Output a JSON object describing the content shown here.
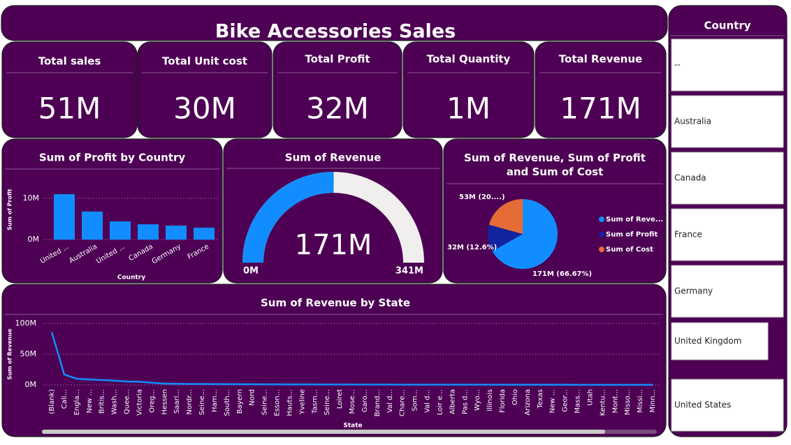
{
  "title": "Bike Accessories Sales",
  "cards": [
    {
      "label": "Total sales",
      "value": "51M"
    },
    {
      "label": "Total Unit cost",
      "value": "30M"
    },
    {
      "label": "Total Profit",
      "value": "32M"
    },
    {
      "label": "Total Quantity",
      "value": "1M"
    },
    {
      "label": "Total Revenue",
      "value": "171M"
    }
  ],
  "slicer": {
    "title": "Country",
    "items": [
      "--",
      "Australia",
      "Canada",
      "France",
      "Germany",
      "United Kingdom",
      "United States"
    ]
  },
  "chart_data": [
    {
      "type": "bar",
      "title": "Sum of Profit by Country",
      "x_label": "Country",
      "y_label": "Sum of Profit",
      "categories": [
        "United ...",
        "Australia",
        "United ...",
        "Canada",
        "Germany",
        "France"
      ],
      "values": [
        11000000,
        6800000,
        4400000,
        3700000,
        3400000,
        2900000
      ],
      "color": "#118dff",
      "ylim": [
        0,
        12000000
      ],
      "yticks": [
        {
          "value": 0,
          "label": "0M"
        },
        {
          "value": 10000000,
          "label": "10M"
        }
      ],
      "grid": true
    },
    {
      "type": "gauge",
      "title": "Sum of Revenue",
      "values": [
        171000000
      ],
      "value_labels": [
        "171M"
      ],
      "min": {
        "value": 0,
        "label": "0M"
      },
      "max": {
        "value": 341000000,
        "label": "341M"
      },
      "color": "#118dff",
      "track_color": "#f1efee"
    },
    {
      "type": "pie",
      "title": "Sum of Revenue, Sum of Profit and Sum of Cost",
      "series": [
        {
          "name": "Sum of Reve...",
          "color": "#118dff",
          "values": [
            171000000
          ],
          "value_labels": [
            "171M (66.67%)"
          ]
        },
        {
          "name": "Sum of Profit",
          "color": "#12239e",
          "values": [
            32000000
          ],
          "value_labels": [
            "32M (12.6%)"
          ]
        },
        {
          "name": "Sum of Cost",
          "color": "#e66c37",
          "values": [
            53000000
          ],
          "value_labels": [
            "53M (20....)"
          ]
        }
      ]
    },
    {
      "type": "line",
      "title": "Sum of Revenue by State",
      "x_label": "State",
      "y_label": "Sum of Revenue",
      "categories": [
        "(Blank)",
        "Cali...",
        "Engla...",
        "New ...",
        "Britis...",
        "Wash...",
        "Quee...",
        "Victoria",
        "Oreg...",
        "Hessen",
        "Saarl...",
        "Nordr...",
        "Seine...",
        "Ham...",
        "South...",
        "Bayern",
        "Nord",
        "Seine...",
        "Esson...",
        "Hauts...",
        "Yveline",
        "Tasm...",
        "Seine...",
        "Loiret",
        "Mose...",
        "Garo...",
        "Brand...",
        "Val d...",
        "Chare...",
        "Som...",
        "Val d...",
        "Loir e...",
        "Alberta",
        "Pas d...",
        "Wyo...",
        "Illinois",
        "Florida",
        "Ohio",
        "Arizona",
        "Texas",
        "New ...",
        "Geor...",
        "Mass...",
        "Utah",
        "Kentu...",
        "Mont...",
        "Misso...",
        "Missi...",
        "Minn..."
      ],
      "values": [
        86000000,
        17000000,
        10000000,
        9000000,
        8000000,
        7000000,
        5500000,
        5200000,
        3500000,
        2200000,
        1800000,
        1600000,
        1500000,
        1400000,
        1300000,
        1200000,
        1100000,
        1000000,
        950000,
        900000,
        850000,
        800000,
        750000,
        700000,
        650000,
        600000,
        550000,
        500000,
        480000,
        460000,
        440000,
        420000,
        400000,
        380000,
        360000,
        340000,
        320000,
        300000,
        280000,
        260000,
        240000,
        220000,
        200000,
        180000,
        160000,
        140000,
        120000,
        100000,
        80000
      ],
      "color": "#118dff",
      "ylim": [
        0,
        100000000
      ],
      "yticks": [
        {
          "value": 0,
          "label": "0M"
        },
        {
          "value": 50000000,
          "label": "50M"
        },
        {
          "value": 100000000,
          "label": "100M"
        }
      ],
      "grid": true
    }
  ]
}
